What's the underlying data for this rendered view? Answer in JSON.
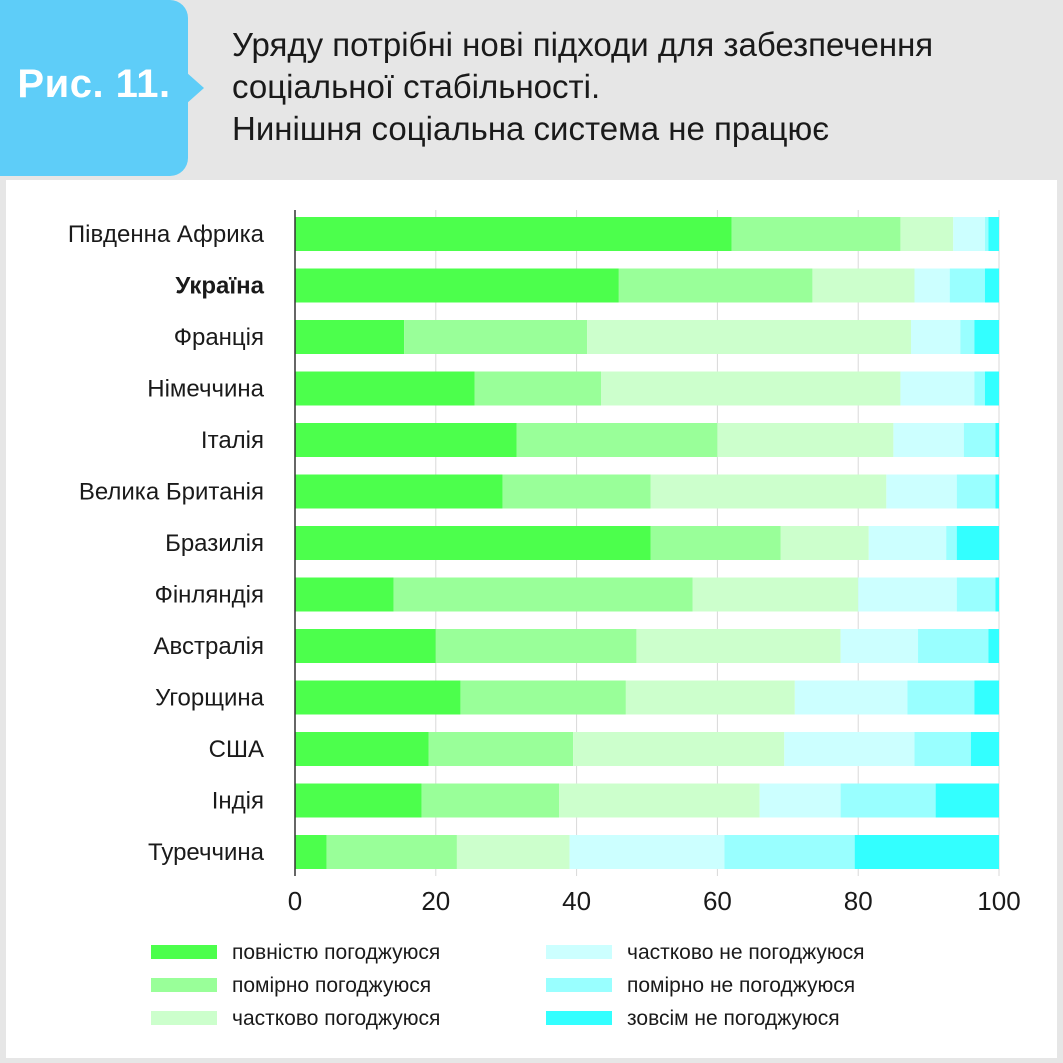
{
  "figure": {
    "label": "Рис. 11.",
    "title_lines": [
      "Уряду потрібні нові підходи для забезпечення",
      "соціальної стабільності.",
      "Нинішня соціальна система не працює"
    ]
  },
  "colors": {
    "background": "#e6e6e6",
    "badge": "#5ecdf8",
    "series": [
      "#4cff4c",
      "#99ff99",
      "#ccffcc",
      "#ccffff",
      "#99ffff",
      "#33ffff"
    ]
  },
  "chart_data": {
    "type": "bar",
    "orientation": "horizontal",
    "stacked": true,
    "categories": [
      "Південна Африка",
      "Україна",
      "Франція",
      "Німеччина",
      "Італія",
      "Велика Британія",
      "Бразилія",
      "Фінляндія",
      "Австралія",
      "Угорщина",
      "США",
      "Індія",
      "Туреччина"
    ],
    "highlight_category": "Україна",
    "series": [
      {
        "name": "повністю погоджуюся",
        "values": [
          62,
          46,
          15.5,
          25.5,
          31.5,
          29.5,
          50.5,
          14,
          20,
          23.5,
          19,
          18,
          4.5
        ]
      },
      {
        "name": "помірно погоджуюся",
        "values": [
          24,
          27.5,
          26,
          18,
          28.5,
          21,
          18.5,
          42.5,
          28.5,
          23.5,
          20.5,
          19.5,
          18.5
        ]
      },
      {
        "name": "частково погоджуюся",
        "values": [
          7.5,
          14.5,
          46,
          42.5,
          25,
          33.5,
          12.5,
          23.5,
          29,
          24,
          30,
          28.5,
          16
        ]
      },
      {
        "name": "частково не погоджуюся",
        "values": [
          4.5,
          5,
          7,
          10.5,
          10,
          10,
          11,
          14,
          11,
          16,
          18.5,
          11.5,
          22
        ]
      },
      {
        "name": "помірно не погоджуюся",
        "values": [
          0.5,
          5,
          2,
          1.5,
          4.5,
          5.5,
          1.5,
          5.5,
          10,
          9.5,
          8,
          13.5,
          18.5
        ]
      },
      {
        "name": "зовсім не погоджуюся",
        "values": [
          1.5,
          2,
          3.5,
          2,
          0.5,
          0.5,
          6,
          0.5,
          1.5,
          3.5,
          4,
          9,
          20.5
        ]
      }
    ],
    "xlim": [
      0,
      100
    ],
    "xticks": [
      0,
      20,
      40,
      60,
      80,
      100
    ],
    "grid": true,
    "legend_position": "bottom"
  }
}
